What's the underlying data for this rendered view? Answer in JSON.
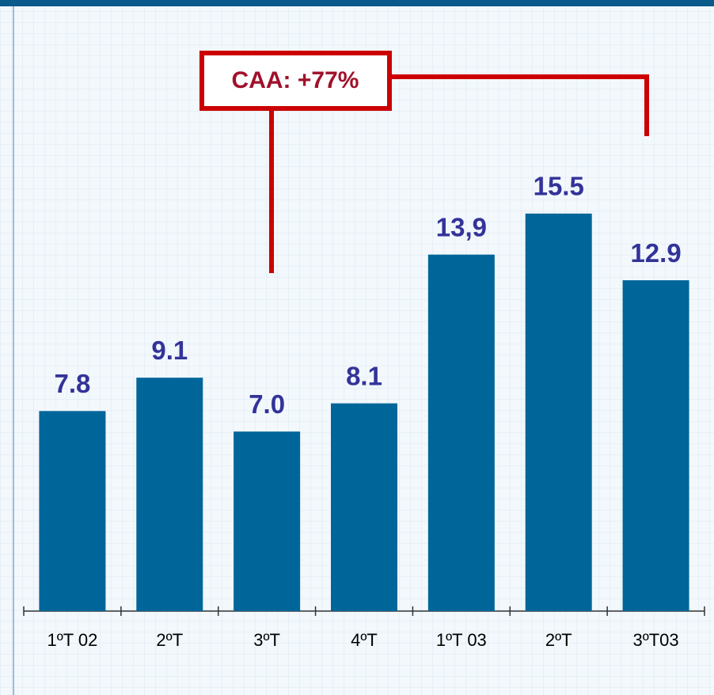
{
  "chart_data": {
    "type": "bar",
    "annotation": "CAA: +77%",
    "categories": [
      "1ºT 02",
      "2ºT",
      "3ºT",
      "4ºT",
      "1ºT 03",
      "2ºT",
      "3ºT03"
    ],
    "values": [
      7.8,
      9.1,
      7.0,
      8.1,
      13.9,
      15.5,
      12.9
    ],
    "value_labels": [
      "7.8",
      "9.1",
      "7.0",
      "8.1",
      "13,9",
      "15.5",
      "12.9"
    ],
    "color": "#00669a"
  }
}
